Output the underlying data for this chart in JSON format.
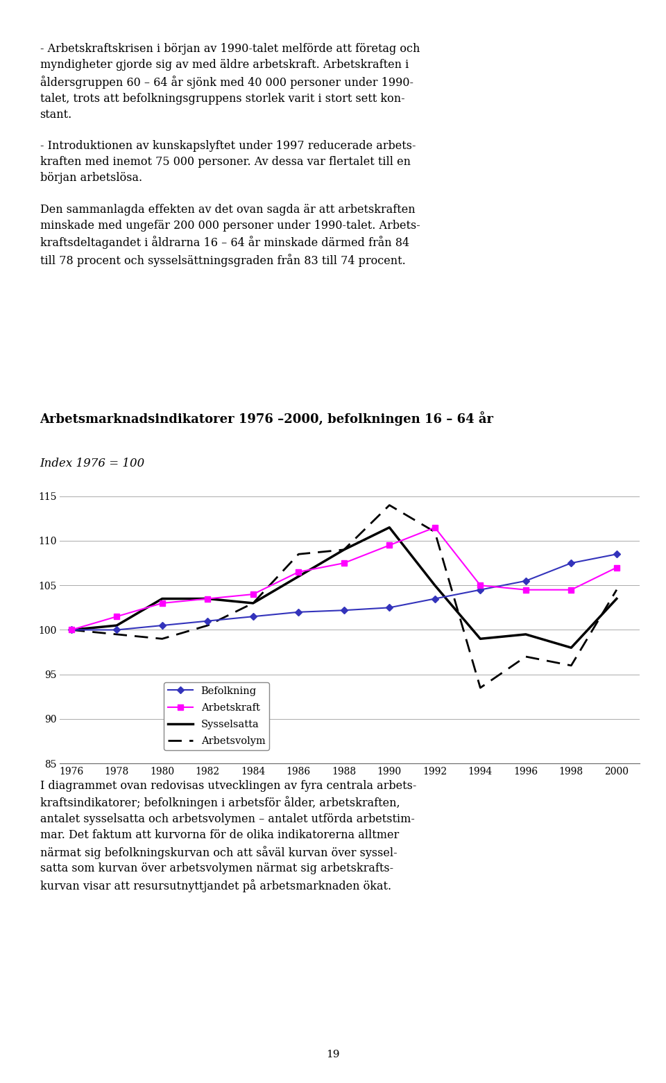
{
  "title": "Arbetsmarknadsindikatorer 1976 –2000, befolkningen 16 – 64 år",
  "subtitle": "Index 1976 = 100",
  "years": [
    1976,
    1978,
    1980,
    1982,
    1984,
    1986,
    1988,
    1990,
    1992,
    1994,
    1996,
    1998,
    2000
  ],
  "befolkning": [
    100,
    100.0,
    100.5,
    101.0,
    101.5,
    102.0,
    102.2,
    102.5,
    103.5,
    104.5,
    105.5,
    107.5,
    108.5
  ],
  "arbetskraft": [
    100,
    101.5,
    103.0,
    103.5,
    104.0,
    106.5,
    107.5,
    109.5,
    111.5,
    105.0,
    104.5,
    104.5,
    107.0
  ],
  "sysselsatta": [
    100,
    100.5,
    103.5,
    103.5,
    103.0,
    106.0,
    109.0,
    111.5,
    105.0,
    99.0,
    99.5,
    98.0,
    103.5
  ],
  "arbetsvolym": [
    100,
    99.5,
    99.0,
    100.5,
    103.0,
    108.5,
    109.0,
    114.0,
    111.0,
    93.5,
    97.0,
    96.0,
    104.5
  ],
  "ylim": [
    85,
    116
  ],
  "yticks": [
    85,
    90,
    95,
    100,
    105,
    110,
    115
  ],
  "background_color": "#ffffff",
  "befolkning_color": "#3333bb",
  "arbetskraft_color": "#ff00ff",
  "sysselsatta_color": "#000000",
  "arbetsvolym_color": "#000000",
  "grid_color": "#aaaaaa",
  "top_text": "- Arbetskraftskrisen i början av 1990-talet melförde att företag och myndigheter gjorde sig av med äldre arbetskraft. Arbetskraften i åldersgruppen 60 – 64 år sjönk med 40 000 personer under 1990-talet, trots att befolkningsgruppens storlek varit i stort sett konstant.\n- Introduktionen av kunskapslyftet under 1997 reducerade arbetskraften med inemot 75 000 personer. Av dessa var flertalet till en början arbetslösa.\nDen sammanlagda effekten av det ovan sagda är att arbetskraften minskade med ungefär 200 000 personer under 1990-talet. Arbetskraftsdeltagandet i åldrarna 16 – 64 år minskade därmed från 84 till 78 procent och sysselsättningsgraden från 83 till 74 procent.",
  "bottom_text": "I diagrammet ovan redovisas utvecklingen av fyra centrala arbetskraftsindikatorer; befolkningen i arbetsför ålder, arbetskraften, antalet sysselsatta och arbetsvolymen – antalet utförda arbetstimmar. Det faktum att kurvorna för de olika indikatorerna alltmer närmat sig befolkningskurvan och att såväl kurvan över sysselsatta som kurvan över arbetsvolymen närmat sig arbetskraftskurvan visar att resursutnyttjandet på arbetsmarknaden ökat.",
  "page_number": "19"
}
